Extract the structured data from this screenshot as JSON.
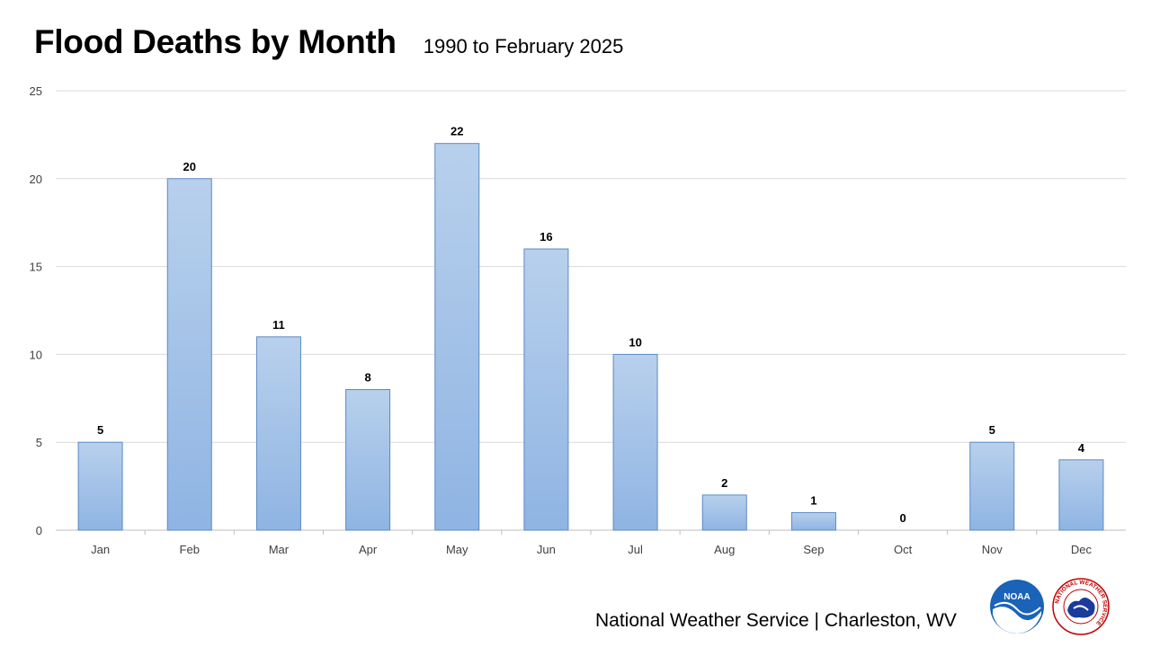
{
  "chart_data": {
    "type": "bar",
    "title": "Flood Deaths by Month",
    "subtitle": "1990 to February 2025",
    "categories": [
      "Jan",
      "Feb",
      "Mar",
      "Apr",
      "May",
      "Jun",
      "Jul",
      "Aug",
      "Sep",
      "Oct",
      "Nov",
      "Dec"
    ],
    "values": [
      5,
      20,
      11,
      8,
      22,
      16,
      10,
      2,
      1,
      0,
      5,
      4
    ],
    "ylim": [
      0,
      25
    ],
    "yticks": [
      0,
      5,
      10,
      15,
      20,
      25
    ],
    "grid": true,
    "data_labels": true,
    "colors": {
      "bar_top": "#b8d0ec",
      "bar_bottom": "#8fb4e3",
      "bar_stroke": "#5a8ac6",
      "grid": "#d9d9d9"
    }
  },
  "footer": {
    "text": "National Weather Service | Charleston, WV",
    "logos": [
      {
        "name": "noaa-logo",
        "text": "NOAA"
      },
      {
        "name": "nws-logo",
        "text": "NATIONAL WEATHER SERVICE"
      }
    ]
  }
}
